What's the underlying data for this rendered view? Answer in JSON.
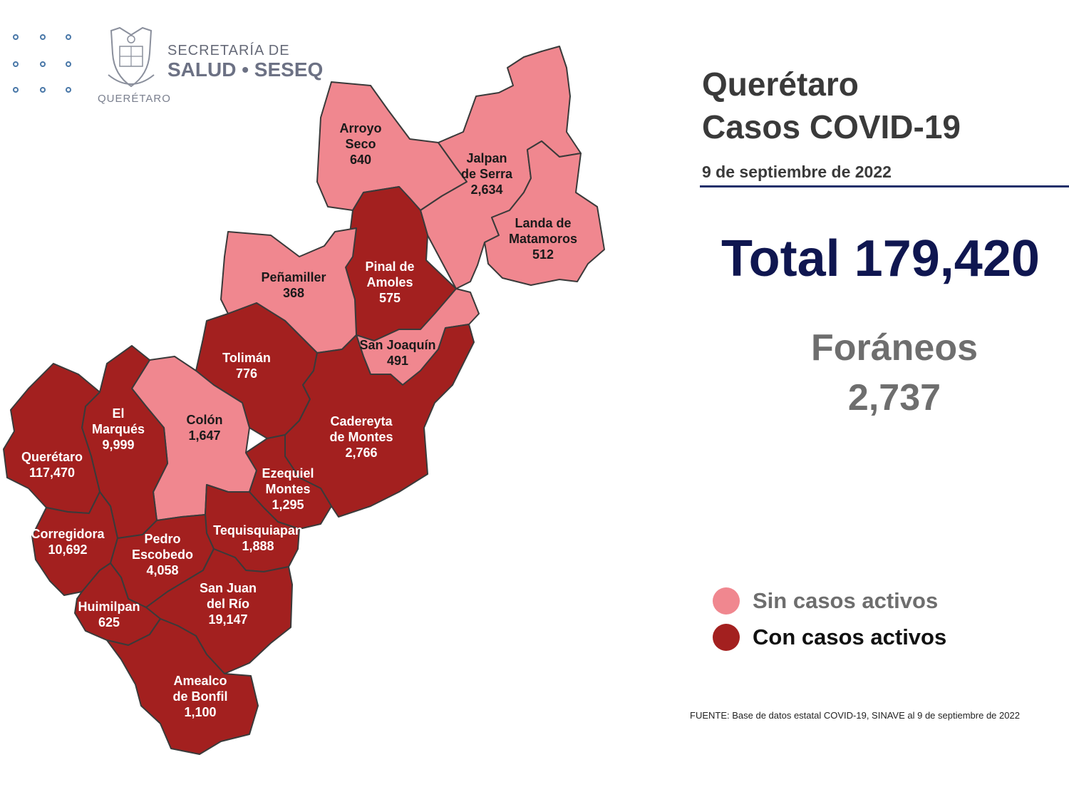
{
  "header": {
    "org_line1": "SECRETARÍA DE",
    "org_line2": "SALUD • SESEQ",
    "state_caption": "QUERÉTARO"
  },
  "title_line1": "Querétaro",
  "title_line2": "Casos COVID-19",
  "date": "9 de septiembre de 2022",
  "total_text": "Total 179,420",
  "foraneos": {
    "label": "Foráneos",
    "value": "2,737"
  },
  "legend": [
    {
      "label": "Sin casos activos",
      "color": "#f0878f",
      "text_color": "#6e6e6e"
    },
    {
      "label": "Con casos activos",
      "color": "#a3201f",
      "text_color": "#111111"
    }
  ],
  "source": "FUENTE: Base de datos estatal COVID-19, SINAVE al 9 de septiembre de 2022",
  "colors": {
    "inactive": "#f0878f",
    "active": "#a3201f",
    "title_blue": "#0f1650"
  },
  "municipalities": [
    {
      "id": "arroyo-seco",
      "name_lines": [
        "Arroyo",
        "Seco"
      ],
      "cases": "640",
      "status": "inactive"
    },
    {
      "id": "jalpan-de-serra",
      "name_lines": [
        "Jalpan",
        "de Serra"
      ],
      "cases": "2,634",
      "status": "inactive"
    },
    {
      "id": "landa-de-matamoros",
      "name_lines": [
        "Landa de",
        "Matamoros"
      ],
      "cases": "512",
      "status": "inactive"
    },
    {
      "id": "pinal-de-amoles",
      "name_lines": [
        "Pinal de",
        "Amoles"
      ],
      "cases": "575",
      "status": "active"
    },
    {
      "id": "penamiller",
      "name_lines": [
        "Peñamiller"
      ],
      "cases": "368",
      "status": "inactive"
    },
    {
      "id": "san-joaquin",
      "name_lines": [
        "San Joaquín"
      ],
      "cases": "491",
      "status": "inactive"
    },
    {
      "id": "toliman",
      "name_lines": [
        "Tolimán"
      ],
      "cases": "776",
      "status": "active"
    },
    {
      "id": "cadereyta-de-montes",
      "name_lines": [
        "Cadereyta",
        "de Montes"
      ],
      "cases": "2,766",
      "status": "active"
    },
    {
      "id": "colon",
      "name_lines": [
        "Colón"
      ],
      "cases": "1,647",
      "status": "inactive"
    },
    {
      "id": "el-marques",
      "name_lines": [
        "El",
        "Marqués"
      ],
      "cases": "9,999",
      "status": "active"
    },
    {
      "id": "queretaro",
      "name_lines": [
        "Querétaro"
      ],
      "cases": "117,470",
      "status": "active"
    },
    {
      "id": "ezequiel-montes",
      "name_lines": [
        "Ezequiel",
        "Montes"
      ],
      "cases": "1,295",
      "status": "active"
    },
    {
      "id": "tequisquiapan",
      "name_lines": [
        "Tequisquiapan"
      ],
      "cases": "1,888",
      "status": "active"
    },
    {
      "id": "corregidora",
      "name_lines": [
        "Corregidora"
      ],
      "cases": "10,692",
      "status": "active"
    },
    {
      "id": "pedro-escobedo",
      "name_lines": [
        "Pedro",
        "Escobedo"
      ],
      "cases": "4,058",
      "status": "active"
    },
    {
      "id": "san-juan-del-rio",
      "name_lines": [
        "San Juan",
        "del Río"
      ],
      "cases": "19,147",
      "status": "active"
    },
    {
      "id": "huimilpan",
      "name_lines": [
        "Huimilpan"
      ],
      "cases": "625",
      "status": "active"
    },
    {
      "id": "amealco-de-bonfil",
      "name_lines": [
        "Amealco",
        "de Bonfil"
      ],
      "cases": "1,100",
      "status": "active"
    }
  ]
}
